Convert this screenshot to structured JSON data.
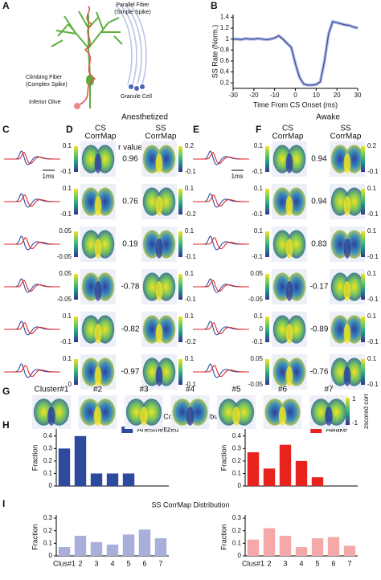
{
  "chart_data": [
    {
      "type": "line",
      "xlabel": "Time From CS Onset (ms)",
      "ylabel": "SS Rate (Norm.)",
      "color": "#3a4aa8",
      "x": [
        -30,
        -28,
        -26,
        -24,
        -22,
        -20,
        -18,
        -16,
        -14,
        -12,
        -10,
        -8,
        -6,
        -4,
        -2,
        0,
        2,
        4,
        6,
        8,
        10,
        12,
        14,
        16,
        18,
        20,
        22,
        24,
        26,
        28,
        30
      ],
      "values": [
        1.0,
        1.0,
        0.99,
        1.01,
        1.0,
        1.0,
        1.01,
        1.0,
        0.99,
        1.0,
        1.02,
        1.06,
        1.0,
        0.92,
        0.85,
        0.55,
        0.3,
        0.18,
        0.16,
        0.16,
        0.17,
        0.22,
        0.6,
        1.1,
        1.32,
        1.3,
        1.28,
        1.26,
        1.25,
        1.22,
        1.2
      ],
      "xlim": [
        -30,
        30
      ],
      "xticks": [
        -30,
        -20,
        -10,
        0,
        10,
        20,
        30
      ],
      "ylim": [
        0.1,
        1.45
      ],
      "yticks": [
        0.2,
        0.4,
        0.6,
        0.8,
        1,
        1.2,
        1.4
      ]
    },
    {
      "type": "bar",
      "title": "CS CorrMap Distribution",
      "ylabel": "Fraction",
      "categories": [
        null,
        null,
        null,
        null,
        null,
        null,
        null
      ],
      "series": [
        {
          "name": "Anesthetized",
          "color": "#2e4a9e",
          "values": [
            0.3,
            0.4,
            0.1,
            0.1,
            0.1,
            0,
            0
          ]
        }
      ],
      "ylim": [
        0,
        0.45
      ],
      "yticks": [
        0,
        0.1,
        0.2,
        0.3,
        0.4
      ]
    },
    {
      "type": "bar",
      "ylabel": "Fraction",
      "categories": [
        null,
        null,
        null,
        null,
        null,
        null,
        null
      ],
      "series": [
        {
          "name": "Awake",
          "color": "#e8231f",
          "values": [
            0.27,
            0.14,
            0.33,
            0.2,
            0.07,
            0,
            0
          ]
        }
      ],
      "ylim": [
        0,
        0.45
      ],
      "yticks": [
        0,
        0.1,
        0.2,
        0.3,
        0.4
      ]
    },
    {
      "type": "bar",
      "title": "SS CorrMap Distribution",
      "ylabel": "Fraction",
      "categories": [
        "Clus#1",
        "2",
        "3",
        "4",
        "5",
        "6",
        "7"
      ],
      "series": [
        {
          "color": "#a9aedb",
          "values": [
            0.07,
            0.16,
            0.11,
            0.09,
            0.17,
            0.21,
            0.14
          ]
        }
      ],
      "ylim": [
        0,
        0.3
      ],
      "yticks": [
        0,
        0.1,
        0.2,
        0.3
      ]
    },
    {
      "type": "bar",
      "ylabel": "Fraction",
      "categories": [
        "Clus#1",
        "2",
        "3",
        "4",
        "5",
        "6",
        "7"
      ],
      "series": [
        {
          "color": "#f4a9a8",
          "values": [
            0.13,
            0.22,
            0.16,
            0.07,
            0.14,
            0.15,
            0.08
          ]
        }
      ],
      "ylim": [
        0,
        0.3
      ],
      "yticks": [
        0,
        0.1,
        0.2,
        0.3
      ]
    }
  ],
  "figure": {
    "panel_labels": [
      "A",
      "B",
      "C",
      "D",
      "E",
      "F",
      "G",
      "H",
      "I"
    ],
    "panel_a": {
      "parallel_fiber": [
        "Parallel Fiber",
        "(Simple Spike)"
      ],
      "climbing_fiber": [
        "Climbing Fiber",
        "(Complex Spike)"
      ],
      "inferior_olive": "Inferior Olive",
      "granule_cell": "Granule Cell"
    },
    "conditions": [
      "Anesthetized",
      "Awake"
    ],
    "cs_header": [
      "CS",
      "CorrMap"
    ],
    "ss_header": [
      "SS",
      "CorrMap"
    ],
    "r_header": "r value",
    "scale_bar": "1ms",
    "anesthetized_rows": [
      {
        "cs_colorbar": [
          "0.1",
          "-0.1"
        ],
        "r_value": "0.96",
        "ss_colorbar": [
          "0.2",
          "-0.1"
        ]
      },
      {
        "cs_colorbar": [
          "0.1",
          "-0.1"
        ],
        "r_value": "0.76",
        "ss_colorbar": [
          "0.1",
          "-0.2"
        ]
      },
      {
        "cs_colorbar": [
          "0.05",
          "-0.05"
        ],
        "r_value": "0.19",
        "ss_colorbar": [
          "0.1",
          "-0.1"
        ]
      },
      {
        "cs_colorbar": [
          "0.05",
          "-0.05"
        ],
        "r_value": "-0.78",
        "ss_colorbar": [
          "0.1",
          "-0.1"
        ]
      },
      {
        "cs_colorbar": [
          "0.1",
          "-0.1"
        ],
        "r_value": "-0.82",
        "ss_colorbar": [
          "0.1",
          "-0.2"
        ]
      },
      {
        "cs_colorbar": [
          "0.1",
          "0"
        ],
        "r_value": "-0.97",
        "ss_colorbar": [
          "0.1",
          "-0.1"
        ]
      }
    ],
    "awake_rows": [
      {
        "cs_colorbar": [
          "0.1",
          "-0.1"
        ],
        "r_value": "0.94",
        "ss_colorbar": [
          "0.2",
          "-0.1"
        ]
      },
      {
        "cs_colorbar": [
          "0.1",
          "-0.1"
        ],
        "r_value": "0.94",
        "ss_colorbar": [
          "0.1",
          "-0.1"
        ]
      },
      {
        "cs_colorbar": [
          "0.1",
          "-0.1"
        ],
        "r_value": "0.83",
        "ss_colorbar": [
          "0.1",
          "-0.1"
        ]
      },
      {
        "cs_colorbar": [
          "0.05",
          "-0.05"
        ],
        "r_value": "-0.17",
        "ss_colorbar": [
          "0.1",
          "-0.1"
        ]
      },
      {
        "cs_colorbar": [
          "0.1",
          "0",
          "-0.1"
        ],
        "r_value": "-0.89",
        "ss_colorbar": [
          "0.1",
          "-0.1"
        ]
      },
      {
        "cs_colorbar": [
          "0.05",
          "-0.05"
        ],
        "r_value": "-0.76",
        "ss_colorbar": [
          "0.1",
          "-0.1"
        ]
      }
    ],
    "clusters": [
      "Cluster#1",
      "#2",
      "#3",
      "#4",
      "#5",
      "#6",
      "#7"
    ],
    "cluster_colorbar": {
      "label": "zscored corr",
      "ticks": [
        "1",
        "-1"
      ]
    }
  }
}
